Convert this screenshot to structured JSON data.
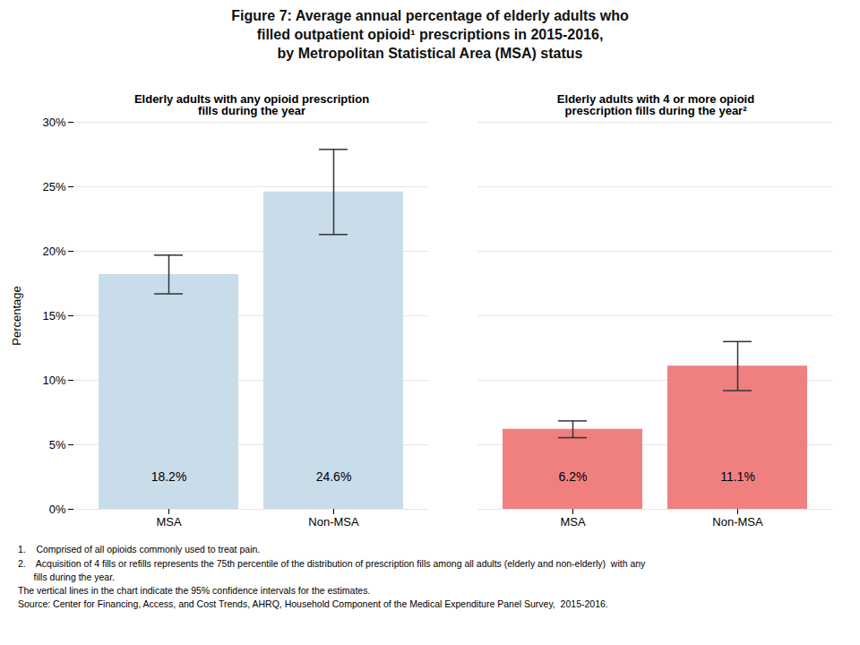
{
  "chart_data": {
    "type": "bar",
    "title": "Figure 7: Average annual percentage of elderly adults who\nfilled outpatient opioid¹ prescriptions in 2015-2016,\nby Metropolitan Statistical Area (MSA) status",
    "categories": [
      "MSA",
      "Non-MSA",
      "MSA",
      "Non-MSA"
    ],
    "groups": [
      {
        "label": "Elderly adults with any opioid prescription\nfills during the year",
        "categories": [
          "MSA",
          "Non-MSA"
        ]
      },
      {
        "label": "Elderly adults with 4 or more opioid\nprescription fills during the year²",
        "categories": [
          "MSA",
          "Non-MSA"
        ]
      }
    ],
    "values": [
      18.2,
      24.6,
      6.2,
      11.1
    ],
    "error_lo": [
      1.5,
      3.3,
      0.65,
      1.9
    ],
    "error_hi": [
      1.5,
      3.3,
      0.65,
      1.9
    ],
    "value_labels": [
      "18.2%",
      "24.6%",
      "6.2%",
      "11.1%"
    ],
    "data_labels": true,
    "colors": [
      "#c9dcea",
      "#c9dcea",
      "#f08080",
      "#f08080"
    ],
    "ylabel": "Percentage",
    "ylim": [
      0,
      30
    ],
    "yticks": [
      {
        "value": 0,
        "label": "0%"
      },
      {
        "value": 5,
        "label": "5%"
      },
      {
        "value": 10,
        "label": "10%"
      },
      {
        "value": 15,
        "label": "15%"
      },
      {
        "value": 20,
        "label": "20%"
      },
      {
        "value": 25,
        "label": "25%"
      },
      {
        "value": 30,
        "label": "30%"
      }
    ],
    "grid": true,
    "footnotes": [
      "1.    Comprised of all opioids commonly used to treat pain.",
      "2.    Acquisition of 4 fills or refills represents the 75th percentile of the distribution of prescription fills among all adults (elderly and non-elderly)  with any",
      "      fills during the year.",
      "The vertical lines in the chart indicate the 95% confidence intervals for the estimates.",
      "Source: Center for Financing, Access, and Cost Trends, AHRQ, Household Component of the Medical Expenditure Panel Survey,  2015-2016."
    ]
  }
}
